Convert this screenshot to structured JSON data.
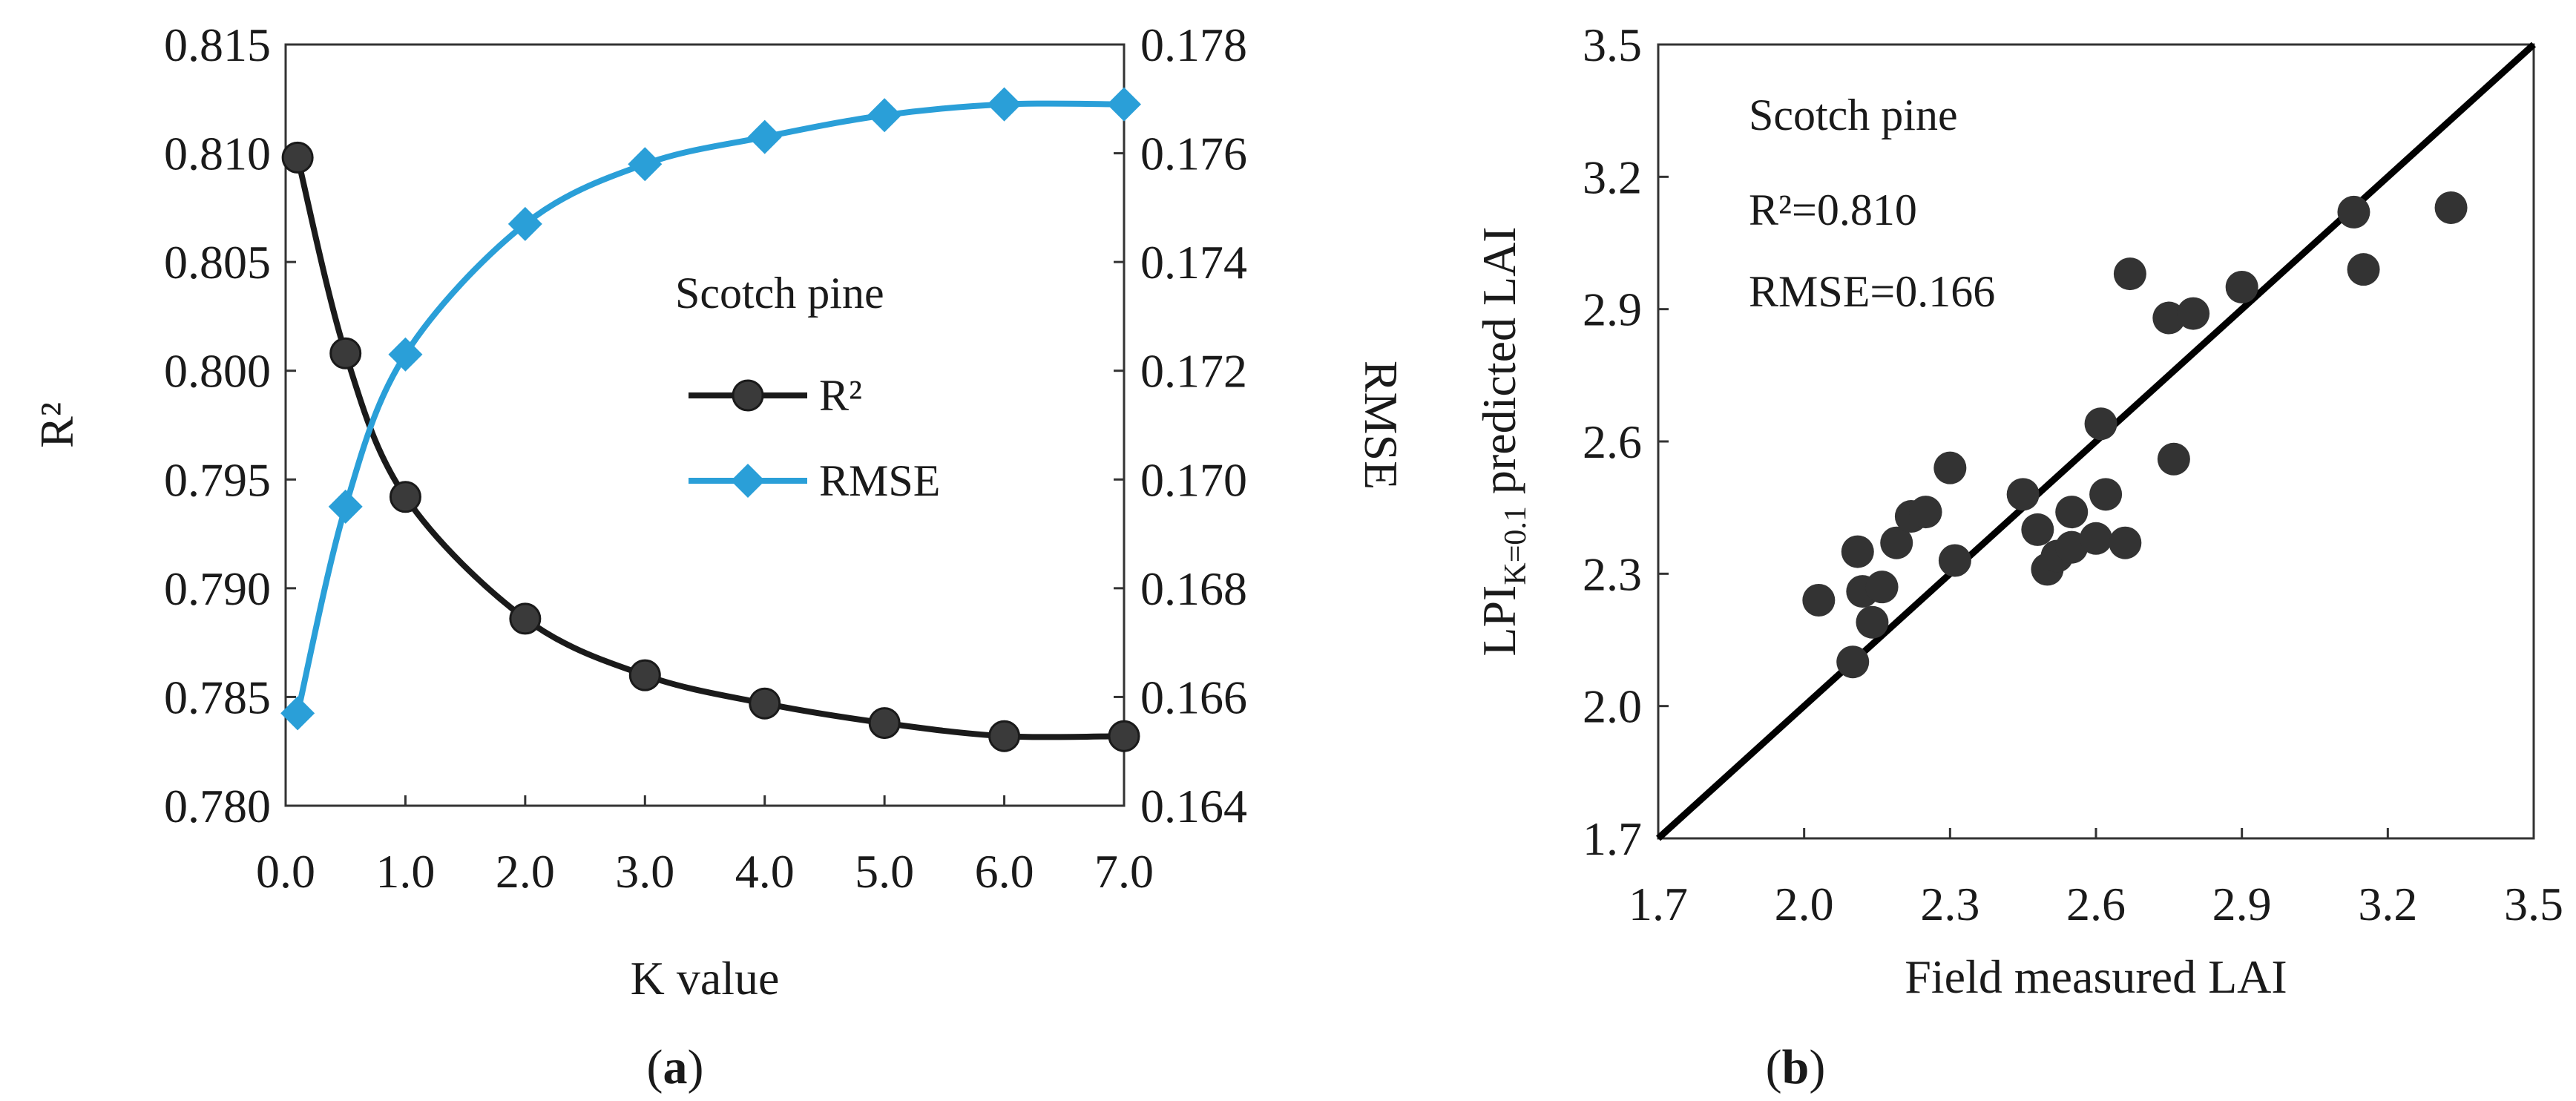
{
  "chart_data": [
    {
      "panel_label_open": "(",
      "panel_label_letter": "a",
      "panel_label_close": ")",
      "type": "line",
      "xlabel": "K value",
      "ylabel_left": "R²",
      "ylabel_right": "RMSE",
      "xlim": [
        0,
        7
      ],
      "ylim_left": [
        0.78,
        0.815
      ],
      "ylim_right": [
        0.164,
        0.178
      ],
      "x_ticks": [
        "0.0",
        "1.0",
        "2.0",
        "3.0",
        "4.0",
        "5.0",
        "6.0",
        "7.0"
      ],
      "y_ticks_left": [
        "0.780",
        "0.785",
        "0.790",
        "0.795",
        "0.800",
        "0.805",
        "0.810",
        "0.815"
      ],
      "y_ticks_right": [
        "0.164",
        "0.166",
        "0.168",
        "0.170",
        "0.172",
        "0.174",
        "0.176",
        "0.178"
      ],
      "annotation": "Scotch pine",
      "legend_position": "right-middle",
      "series": [
        {
          "name": "R²",
          "axis": "left",
          "color": "#333333",
          "marker": "circle",
          "x": [
            0.1,
            0.5,
            1.0,
            2.0,
            3.0,
            4.0,
            5.0,
            6.0,
            7.0
          ],
          "y": [
            0.8098,
            0.8008,
            0.7942,
            0.7886,
            0.786,
            0.7847,
            0.7838,
            0.7832,
            0.7832
          ]
        },
        {
          "name": "RMSE",
          "axis": "right",
          "color": "#2a9fd8",
          "marker": "diamond",
          "x": [
            0.1,
            0.5,
            1.0,
            2.0,
            3.0,
            4.0,
            5.0,
            6.0,
            7.0
          ],
          "y": [
            0.1657,
            0.1695,
            0.1723,
            0.1747,
            0.1758,
            0.1763,
            0.1767,
            0.1769,
            0.1769
          ]
        }
      ]
    },
    {
      "panel_label_open": "(",
      "panel_label_letter": "b",
      "panel_label_close": ")",
      "type": "scatter",
      "xlabel": "Field measured LAI",
      "ylabel_main": "LPI",
      "ylabel_sub": "K=0.1",
      "ylabel_rest": " predicted LAI",
      "xlim": [
        1.7,
        3.5
      ],
      "ylim": [
        1.7,
        3.5
      ],
      "x_ticks": [
        "1.7",
        "2.0",
        "2.3",
        "2.6",
        "2.9",
        "3.2",
        "3.5"
      ],
      "y_ticks": [
        "1.7",
        "2.0",
        "2.3",
        "2.6",
        "2.9",
        "3.2",
        "3.5"
      ],
      "annotation_title": "Scotch pine",
      "annotation_r2": "R²=0.810",
      "annotation_rmse": "RMSE=0.166",
      "one_to_one_line": true,
      "point_color": "#333333",
      "points": [
        [
          2.03,
          2.24
        ],
        [
          2.1,
          2.1
        ],
        [
          2.11,
          2.35
        ],
        [
          2.12,
          2.26
        ],
        [
          2.14,
          2.19
        ],
        [
          2.16,
          2.27
        ],
        [
          2.19,
          2.37
        ],
        [
          2.22,
          2.43
        ],
        [
          2.25,
          2.44
        ],
        [
          2.3,
          2.54
        ],
        [
          2.31,
          2.33
        ],
        [
          2.45,
          2.48
        ],
        [
          2.48,
          2.4
        ],
        [
          2.5,
          2.31
        ],
        [
          2.52,
          2.34
        ],
        [
          2.55,
          2.36
        ],
        [
          2.55,
          2.44
        ],
        [
          2.6,
          2.38
        ],
        [
          2.61,
          2.64
        ],
        [
          2.62,
          2.48
        ],
        [
          2.66,
          2.37
        ],
        [
          2.67,
          2.98
        ],
        [
          2.75,
          2.88
        ],
        [
          2.76,
          2.56
        ],
        [
          2.8,
          2.89
        ],
        [
          2.9,
          2.95
        ],
        [
          3.13,
          3.12
        ],
        [
          3.15,
          2.99
        ],
        [
          3.33,
          3.13
        ]
      ]
    }
  ]
}
